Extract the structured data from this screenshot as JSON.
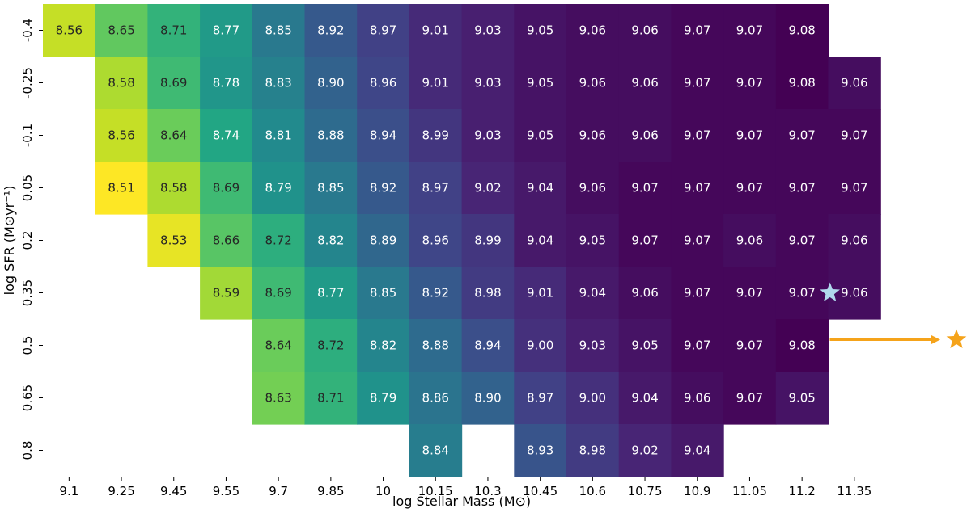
{
  "chart_data": {
    "type": "heatmap",
    "xlabel": "log Stellar Mass (M⊙)",
    "ylabel": "log SFR (M⊙yr⁻¹)",
    "x_categories": [
      "9.1",
      "9.25",
      "9.45",
      "9.55",
      "9.7",
      "9.85",
      "10",
      "10.15",
      "10.3",
      "10.45",
      "10.6",
      "10.75",
      "10.9",
      "11.05",
      "11.2",
      "11.35"
    ],
    "y_categories": [
      "-0.4",
      "-0.25",
      "-0.1",
      "0.05",
      "0.2",
      "0.35",
      "0.5",
      "0.65",
      "0.8"
    ],
    "values": [
      [
        8.56,
        8.65,
        8.71,
        8.77,
        8.85,
        8.92,
        8.97,
        9.01,
        9.03,
        9.05,
        9.06,
        9.06,
        9.07,
        9.07,
        9.08,
        null
      ],
      [
        null,
        8.58,
        8.69,
        8.78,
        8.83,
        8.9,
        8.96,
        9.01,
        9.03,
        9.05,
        9.06,
        9.06,
        9.07,
        9.07,
        9.08,
        9.06
      ],
      [
        null,
        8.56,
        8.64,
        8.74,
        8.81,
        8.88,
        8.94,
        8.99,
        9.03,
        9.05,
        9.06,
        9.06,
        9.07,
        9.07,
        9.07,
        9.07
      ],
      [
        null,
        8.51,
        8.58,
        8.69,
        8.79,
        8.85,
        8.92,
        8.97,
        9.02,
        9.04,
        9.06,
        9.07,
        9.07,
        9.07,
        9.07,
        9.07
      ],
      [
        null,
        null,
        8.53,
        8.66,
        8.72,
        8.82,
        8.89,
        8.96,
        8.99,
        9.04,
        9.05,
        9.07,
        9.07,
        9.06,
        9.07,
        9.06
      ],
      [
        null,
        null,
        null,
        8.59,
        8.69,
        8.77,
        8.85,
        8.92,
        8.98,
        9.01,
        9.04,
        9.06,
        9.07,
        9.07,
        9.07,
        9.06
      ],
      [
        null,
        null,
        null,
        null,
        8.64,
        8.72,
        8.82,
        8.88,
        8.94,
        9.0,
        9.03,
        9.05,
        9.07,
        9.07,
        9.08,
        null
      ],
      [
        null,
        null,
        null,
        null,
        8.63,
        8.71,
        8.79,
        8.86,
        8.9,
        8.97,
        9.0,
        9.04,
        9.06,
        9.07,
        9.05,
        null
      ],
      [
        null,
        null,
        null,
        null,
        null,
        null,
        null,
        8.84,
        null,
        8.93,
        8.98,
        9.02,
        9.04,
        null,
        null,
        null
      ]
    ],
    "colormap": "viridis",
    "color_range": [
      8.51,
      9.08
    ],
    "markers": [
      {
        "shape": "star",
        "color": "#b0d8ec",
        "x": 11.28,
        "y": 0.35
      },
      {
        "shape": "star",
        "color": "#f5a31a",
        "note": "off-chart, indicated by arrow",
        "arrow_color": "#f5a31a",
        "y": 0.5
      }
    ]
  }
}
